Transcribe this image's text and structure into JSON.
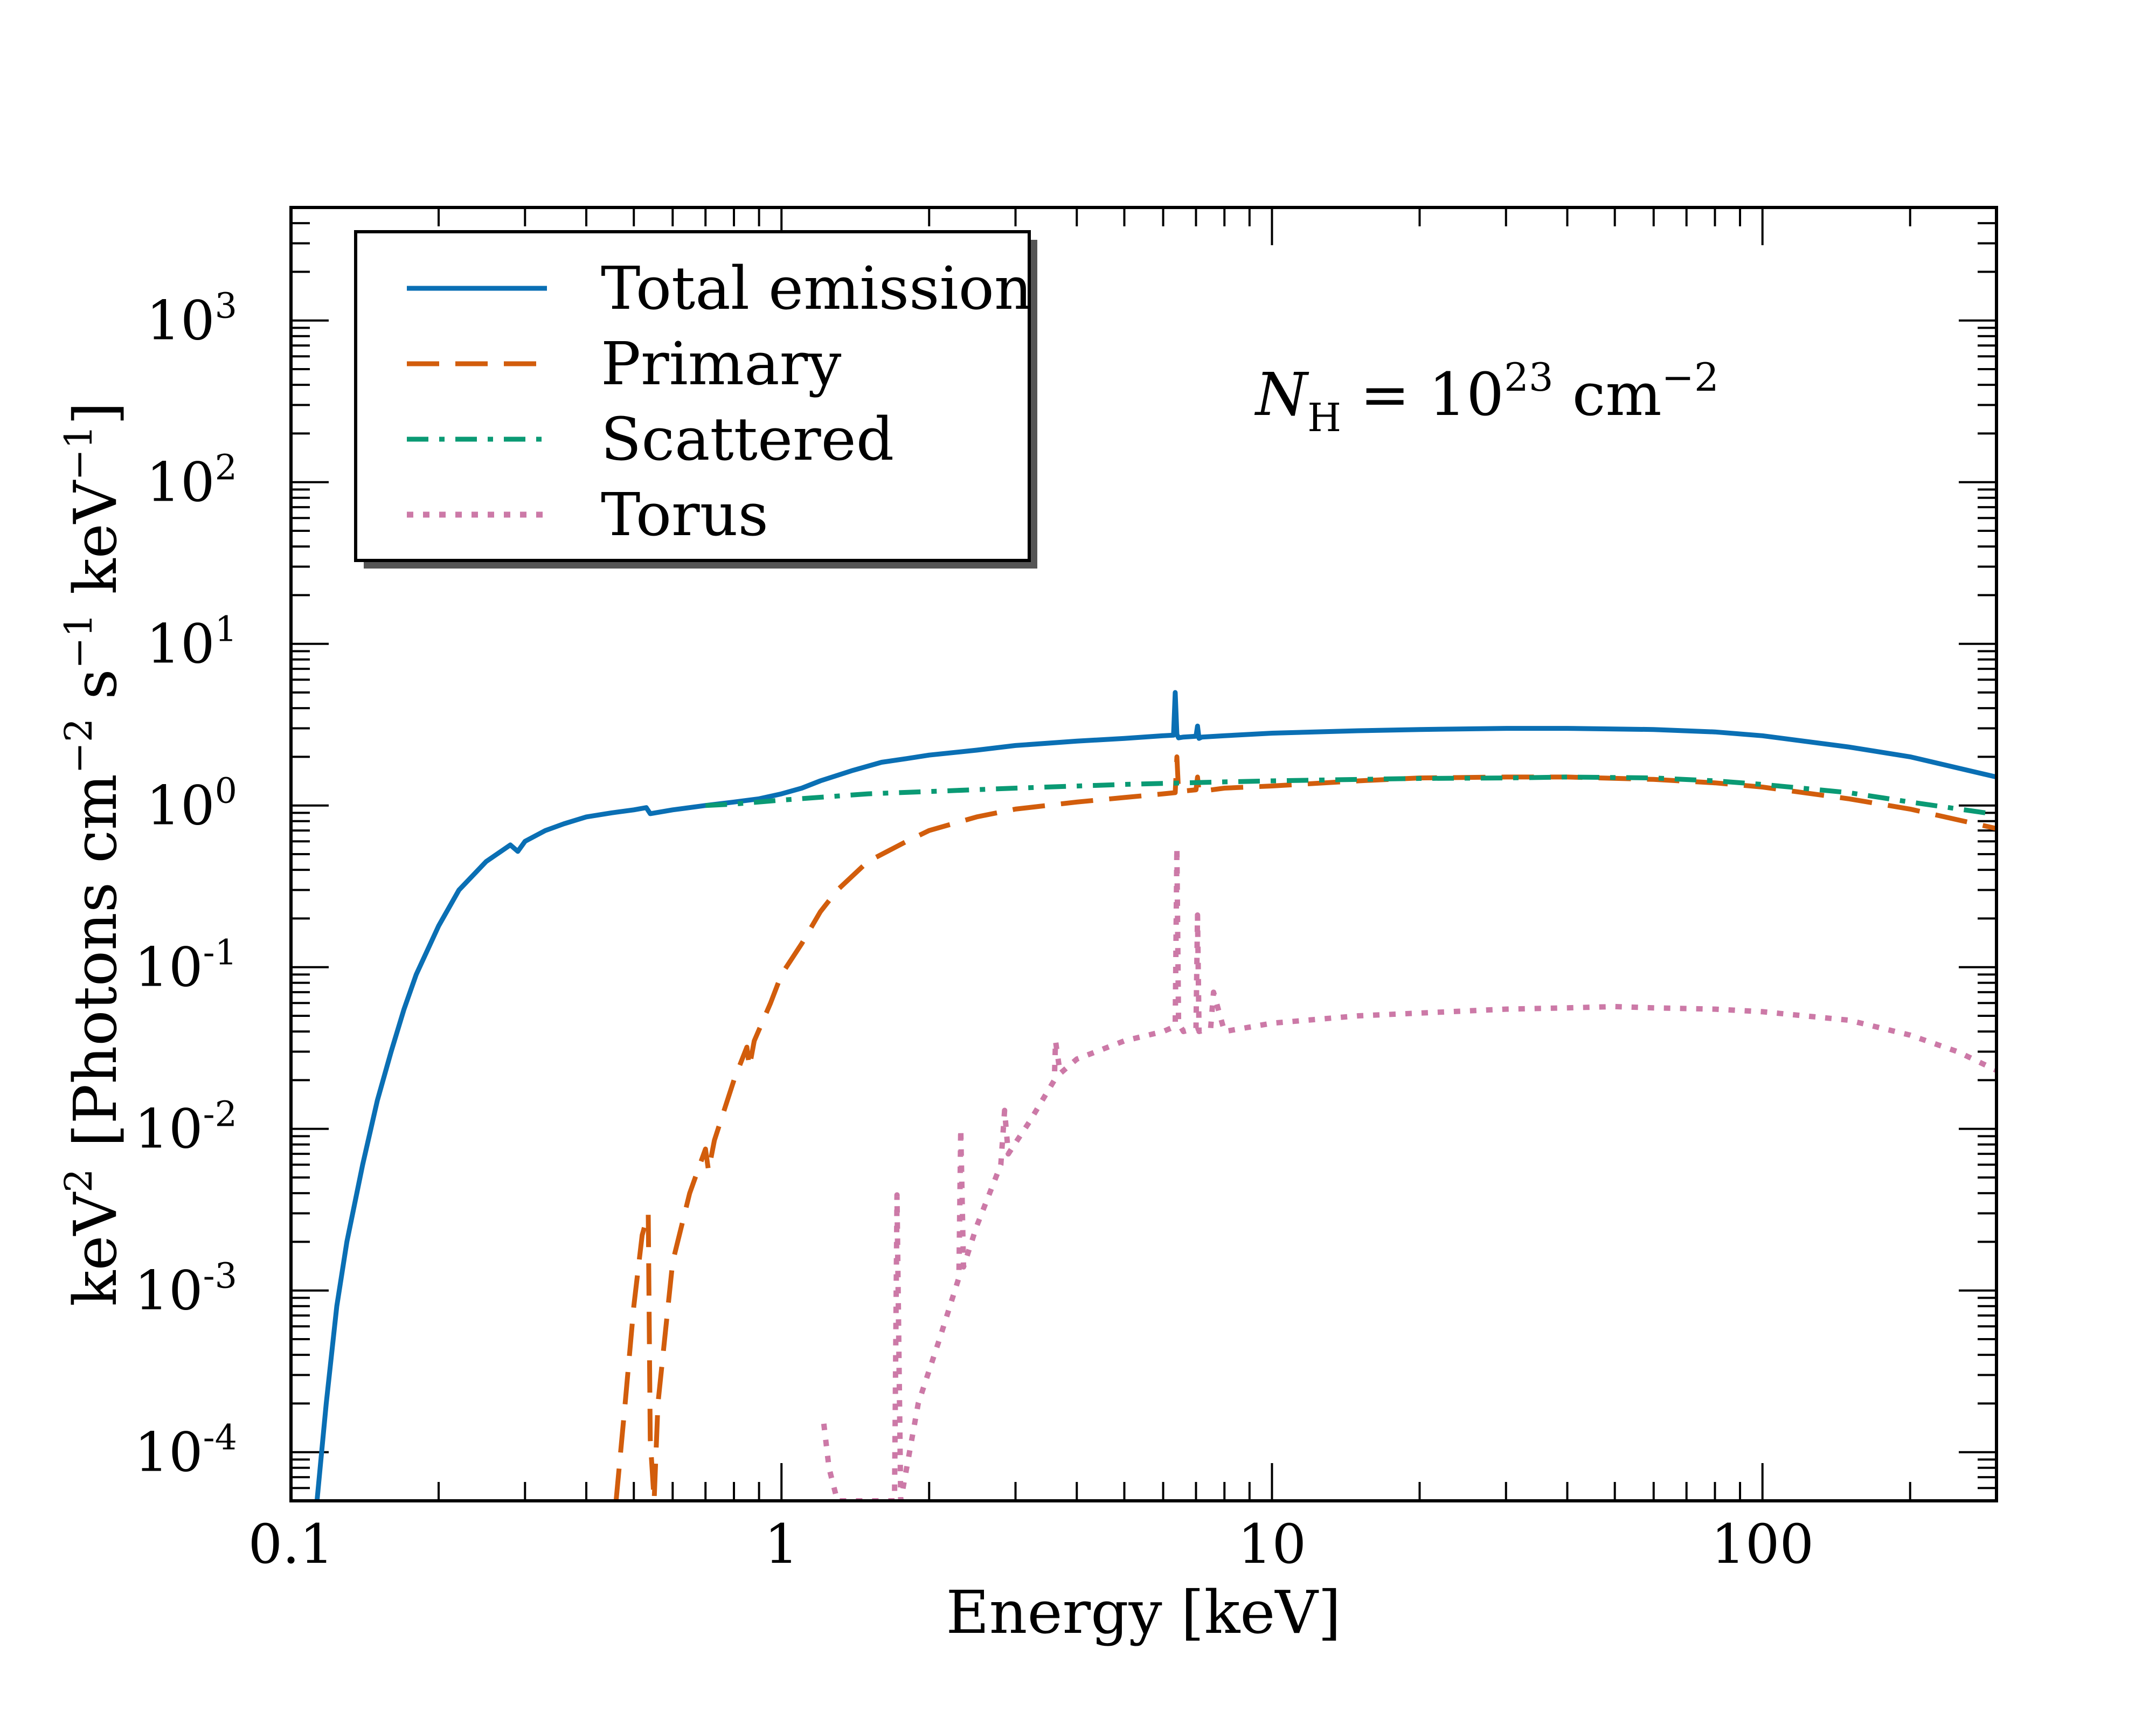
{
  "chart_data": {
    "type": "line",
    "title": "",
    "xlabel": "Energy  [keV]",
    "ylabel_parts": {
      "prefix": "keV",
      "exp_keV": "2",
      "bracket_open": "[Photons cm",
      "exp_cm": "−2",
      "s": " s",
      "exp_s": "−1",
      "keV2": " keV",
      "exp_keV2": "−1",
      "bracket_close": "]"
    },
    "x_scale": "log",
    "y_scale": "log",
    "xlim": [
      0.1,
      300
    ],
    "ylim": [
      5e-05,
      5000
    ],
    "x_ticks": [
      {
        "value": 0.1,
        "label": "0.1"
      },
      {
        "value": 1,
        "label": "1"
      },
      {
        "value": 10,
        "label": "10"
      },
      {
        "value": 100,
        "label": "100"
      }
    ],
    "y_ticks": [
      {
        "value": 0.0001,
        "base": "10",
        "exp": "-4"
      },
      {
        "value": 0.001,
        "base": "10",
        "exp": "-3"
      },
      {
        "value": 0.01,
        "base": "10",
        "exp": "-2"
      },
      {
        "value": 0.1,
        "base": "10",
        "exp": "-1"
      },
      {
        "value": 1,
        "base": "10",
        "exp": "0"
      },
      {
        "value": 10,
        "base": "10",
        "exp": "1"
      },
      {
        "value": 100,
        "base": "10",
        "exp": "2"
      },
      {
        "value": 1000,
        "base": "10",
        "exp": "3"
      }
    ],
    "annotation": {
      "n": "N",
      "sub": "H",
      "eq": " = 10",
      "exp": "23",
      "unit": " cm",
      "unit_exp": "−2"
    },
    "legend_position": "top-left",
    "series": [
      {
        "name": "Total emission",
        "color": "#0a6fb4",
        "style": "solid",
        "x": [
          0.113,
          0.118,
          0.124,
          0.13,
          0.14,
          0.15,
          0.16,
          0.17,
          0.18,
          0.2,
          0.22,
          0.25,
          0.28,
          0.29,
          0.3,
          0.33,
          0.36,
          0.4,
          0.45,
          0.5,
          0.53,
          0.54,
          0.6,
          0.7,
          0.8,
          0.9,
          1.0,
          1.1,
          1.2,
          1.4,
          1.6,
          1.8,
          2.0,
          2.5,
          3.0,
          4.0,
          5.0,
          6.0,
          6.3,
          6.35,
          6.4,
          6.45,
          6.6,
          7.0,
          7.05,
          7.1,
          7.2,
          8.0,
          10,
          15,
          20,
          30,
          40,
          60,
          80,
          100,
          150,
          200,
          300
        ],
        "values": [
          5e-05,
          0.0002,
          0.0008,
          0.002,
          0.006,
          0.015,
          0.03,
          0.055,
          0.09,
          0.18,
          0.3,
          0.45,
          0.57,
          0.52,
          0.6,
          0.7,
          0.77,
          0.85,
          0.9,
          0.94,
          0.97,
          0.89,
          0.94,
          1.0,
          1.05,
          1.1,
          1.18,
          1.28,
          1.42,
          1.65,
          1.85,
          1.95,
          2.05,
          2.2,
          2.35,
          2.5,
          2.6,
          2.7,
          2.72,
          5.0,
          2.75,
          2.62,
          2.65,
          2.68,
          3.1,
          2.6,
          2.65,
          2.7,
          2.8,
          2.9,
          2.95,
          3.0,
          3.0,
          2.95,
          2.85,
          2.7,
          2.3,
          2.0,
          1.5
        ]
      },
      {
        "name": "Primary",
        "color": "#d25d0c",
        "style": "dashed",
        "x": [
          0.46,
          0.48,
          0.5,
          0.52,
          0.535,
          0.54,
          0.55,
          0.56,
          0.6,
          0.65,
          0.7,
          0.71,
          0.73,
          0.8,
          0.85,
          0.86,
          0.88,
          0.95,
          1.0,
          1.1,
          1.2,
          1.3,
          1.5,
          1.8,
          2.0,
          2.5,
          3.0,
          4.0,
          5.0,
          6.0,
          6.35,
          6.4,
          6.45,
          7.0,
          7.05,
          7.1,
          8.0,
          10,
          15,
          20,
          30,
          40,
          60,
          80,
          100,
          150,
          200,
          300
        ],
        "values": [
          5e-05,
          0.0002,
          0.0008,
          0.0022,
          0.003,
          0.00012,
          5e-05,
          0.0002,
          0.0015,
          0.004,
          0.0075,
          0.0055,
          0.0085,
          0.02,
          0.032,
          0.024,
          0.035,
          0.06,
          0.09,
          0.14,
          0.22,
          0.3,
          0.45,
          0.6,
          0.7,
          0.85,
          0.95,
          1.05,
          1.12,
          1.18,
          1.2,
          2.0,
          1.22,
          1.25,
          1.5,
          1.22,
          1.28,
          1.32,
          1.42,
          1.48,
          1.5,
          1.5,
          1.45,
          1.38,
          1.3,
          1.1,
          0.95,
          0.72
        ]
      },
      {
        "name": "Scattered",
        "color": "#0a9a74",
        "style": "dashdot",
        "x": [
          0.7,
          0.8,
          1.0,
          1.5,
          2.0,
          3.0,
          5.0,
          8.0,
          10,
          15,
          20,
          30,
          40,
          60,
          80,
          100,
          150,
          200,
          300
        ],
        "values": [
          1.0,
          1.02,
          1.08,
          1.18,
          1.22,
          1.28,
          1.35,
          1.4,
          1.42,
          1.45,
          1.47,
          1.48,
          1.5,
          1.48,
          1.42,
          1.35,
          1.2,
          1.05,
          0.88
        ]
      },
      {
        "name": "Torus",
        "color": "#cc79a7",
        "style": "dotted",
        "x": [
          1.22,
          1.25,
          1.3,
          1.35,
          1.45,
          1.5,
          1.55,
          1.7,
          1.72,
          1.75,
          1.8,
          1.9,
          2.1,
          2.3,
          2.32,
          2.35,
          2.5,
          2.8,
          2.85,
          2.9,
          3.2,
          3.6,
          3.62,
          3.7,
          4.0,
          5.0,
          6.0,
          6.35,
          6.4,
          6.45,
          6.6,
          7.0,
          7.05,
          7.1,
          7.5,
          7.6,
          8.0,
          10,
          15,
          20,
          30,
          40,
          50,
          60,
          80,
          100,
          150,
          200,
          250,
          300
        ],
        "values": [
          0.00015,
          8e-05,
          5e-05,
          5e-05,
          5e-05,
          5e-05,
          5e-05,
          5e-05,
          0.0039,
          5e-05,
          8e-05,
          0.0002,
          0.0005,
          0.0012,
          0.01,
          0.0014,
          0.0025,
          0.006,
          0.013,
          0.007,
          0.011,
          0.02,
          0.035,
          0.022,
          0.027,
          0.035,
          0.04,
          0.043,
          0.55,
          0.045,
          0.04,
          0.042,
          0.21,
          0.04,
          0.042,
          0.07,
          0.04,
          0.045,
          0.05,
          0.052,
          0.055,
          0.056,
          0.057,
          0.056,
          0.055,
          0.053,
          0.047,
          0.038,
          0.03,
          0.023
        ]
      }
    ]
  }
}
